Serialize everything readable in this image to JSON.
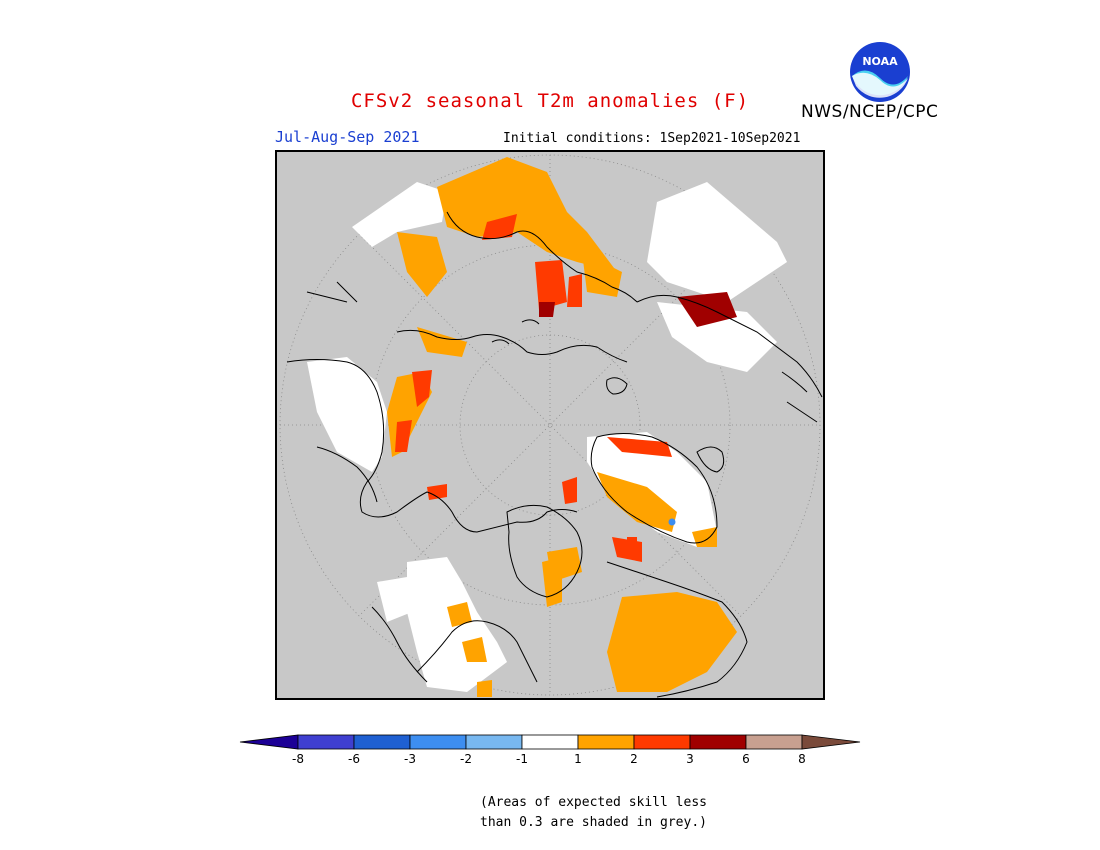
{
  "header": {
    "title": "CFSv2 seasonal T2m anomalies (F)",
    "organization": "NWS/NCEP/CPC",
    "logo_text": "NOAA",
    "period": "Jul-Aug-Sep 2021",
    "initial_conditions": "Initial conditions: 1Sep2021-10Sep2021"
  },
  "map": {
    "projection": "north-polar-stereographic",
    "background_color": "#c8c8c8",
    "coastline_color": "#000000",
    "low_skill_color": "#c8c8c8"
  },
  "legend": {
    "tick_labels": [
      "-8",
      "-6",
      "-3",
      "-2",
      "-1",
      "1",
      "2",
      "3",
      "6",
      "8"
    ],
    "colors": [
      "#1c0096",
      "#3f3fd0",
      "#1f60d2",
      "#3d8ef0",
      "#78b8f0",
      "#ffffff",
      "#ffa300",
      "#ff3a00",
      "#a00000",
      "#c8a090",
      "#7a4a3a"
    ]
  },
  "footer": {
    "note_line1": "(Areas of expected skill less",
    "note_line2": "than 0.3 are shaded in grey.)"
  }
}
